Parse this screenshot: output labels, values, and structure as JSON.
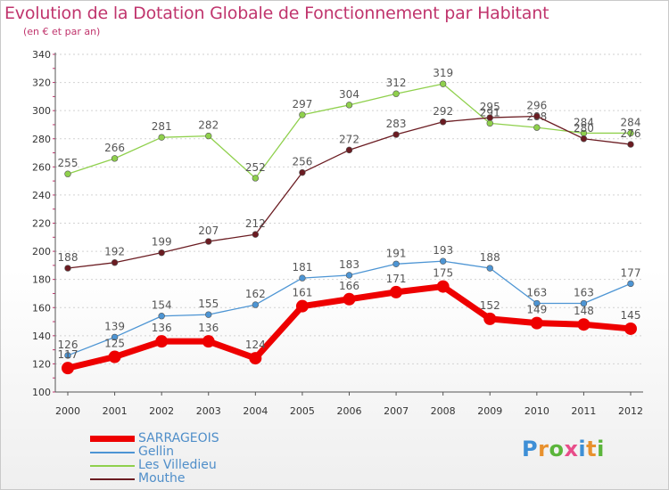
{
  "title": "Evolution de la Dotation Globale de Fonctionnement par Habitant",
  "subtitle": "(en € et par an)",
  "logo": {
    "text": "Proxiti",
    "colors": [
      "#3e8fd6",
      "#e8912e",
      "#5bb53b",
      "#e84d8a",
      "#3e8fd6",
      "#e8912e",
      "#5bb53b"
    ]
  },
  "chart_data": {
    "type": "line",
    "title": "Evolution de la Dotation Globale de Fonctionnement par Habitant",
    "ylabel": "(en € et par an)",
    "xlabel": "",
    "categories": [
      "2000",
      "2001",
      "2002",
      "2003",
      "2004",
      "2005",
      "2006",
      "2007",
      "2008",
      "2009",
      "2010",
      "2011",
      "2012"
    ],
    "ylim": [
      100,
      340
    ],
    "yticks": [
      "100",
      "120",
      "140",
      "160",
      "180",
      "200",
      "220",
      "240",
      "260",
      "280",
      "300",
      "320",
      "340"
    ],
    "grid": "horizontal dashed",
    "legend_position": "bottom-left",
    "series": [
      {
        "name": "Les Villedieu",
        "color": "#8fd04c",
        "values": [
          255,
          266,
          281,
          282,
          252,
          297,
          304,
          312,
          319,
          291,
          288,
          284,
          284
        ],
        "labels": [
          "255",
          "266",
          "281",
          "282",
          "252",
          "297",
          "304",
          "312",
          "319",
          "291",
          "288",
          "284",
          "284"
        ]
      },
      {
        "name": "Mouthe",
        "color": "#6b1c22",
        "values": [
          188,
          192,
          199,
          207,
          212,
          256,
          272,
          283,
          292,
          295,
          296,
          280,
          276
        ],
        "labels": [
          "188",
          "192",
          "199",
          "207",
          "212",
          "256",
          "272",
          "283",
          "292",
          "295",
          "296",
          "280",
          "276"
        ]
      },
      {
        "name": "Gellin",
        "color": "#4d95d4",
        "values": [
          126,
          139,
          154,
          155,
          162,
          181,
          183,
          191,
          193,
          188,
          163,
          163,
          177
        ],
        "labels": [
          "126",
          "139",
          "154",
          "155",
          "162",
          "181",
          "183",
          "191",
          "193",
          "188",
          "163",
          "163",
          "177"
        ]
      },
      {
        "name": "SARRAGEOIS",
        "color": "#ee0000",
        "values": [
          117,
          125,
          136,
          136,
          124,
          161,
          166,
          171,
          175,
          152,
          149,
          148,
          145
        ],
        "labels": [
          "117",
          "125",
          "136",
          "136",
          "124",
          "161",
          "166",
          "171",
          "175",
          "152",
          "149",
          "148",
          "145"
        ]
      }
    ],
    "legend": [
      "SARRAGEOIS",
      "Gellin",
      "Les Villedieu",
      "Mouthe"
    ]
  }
}
